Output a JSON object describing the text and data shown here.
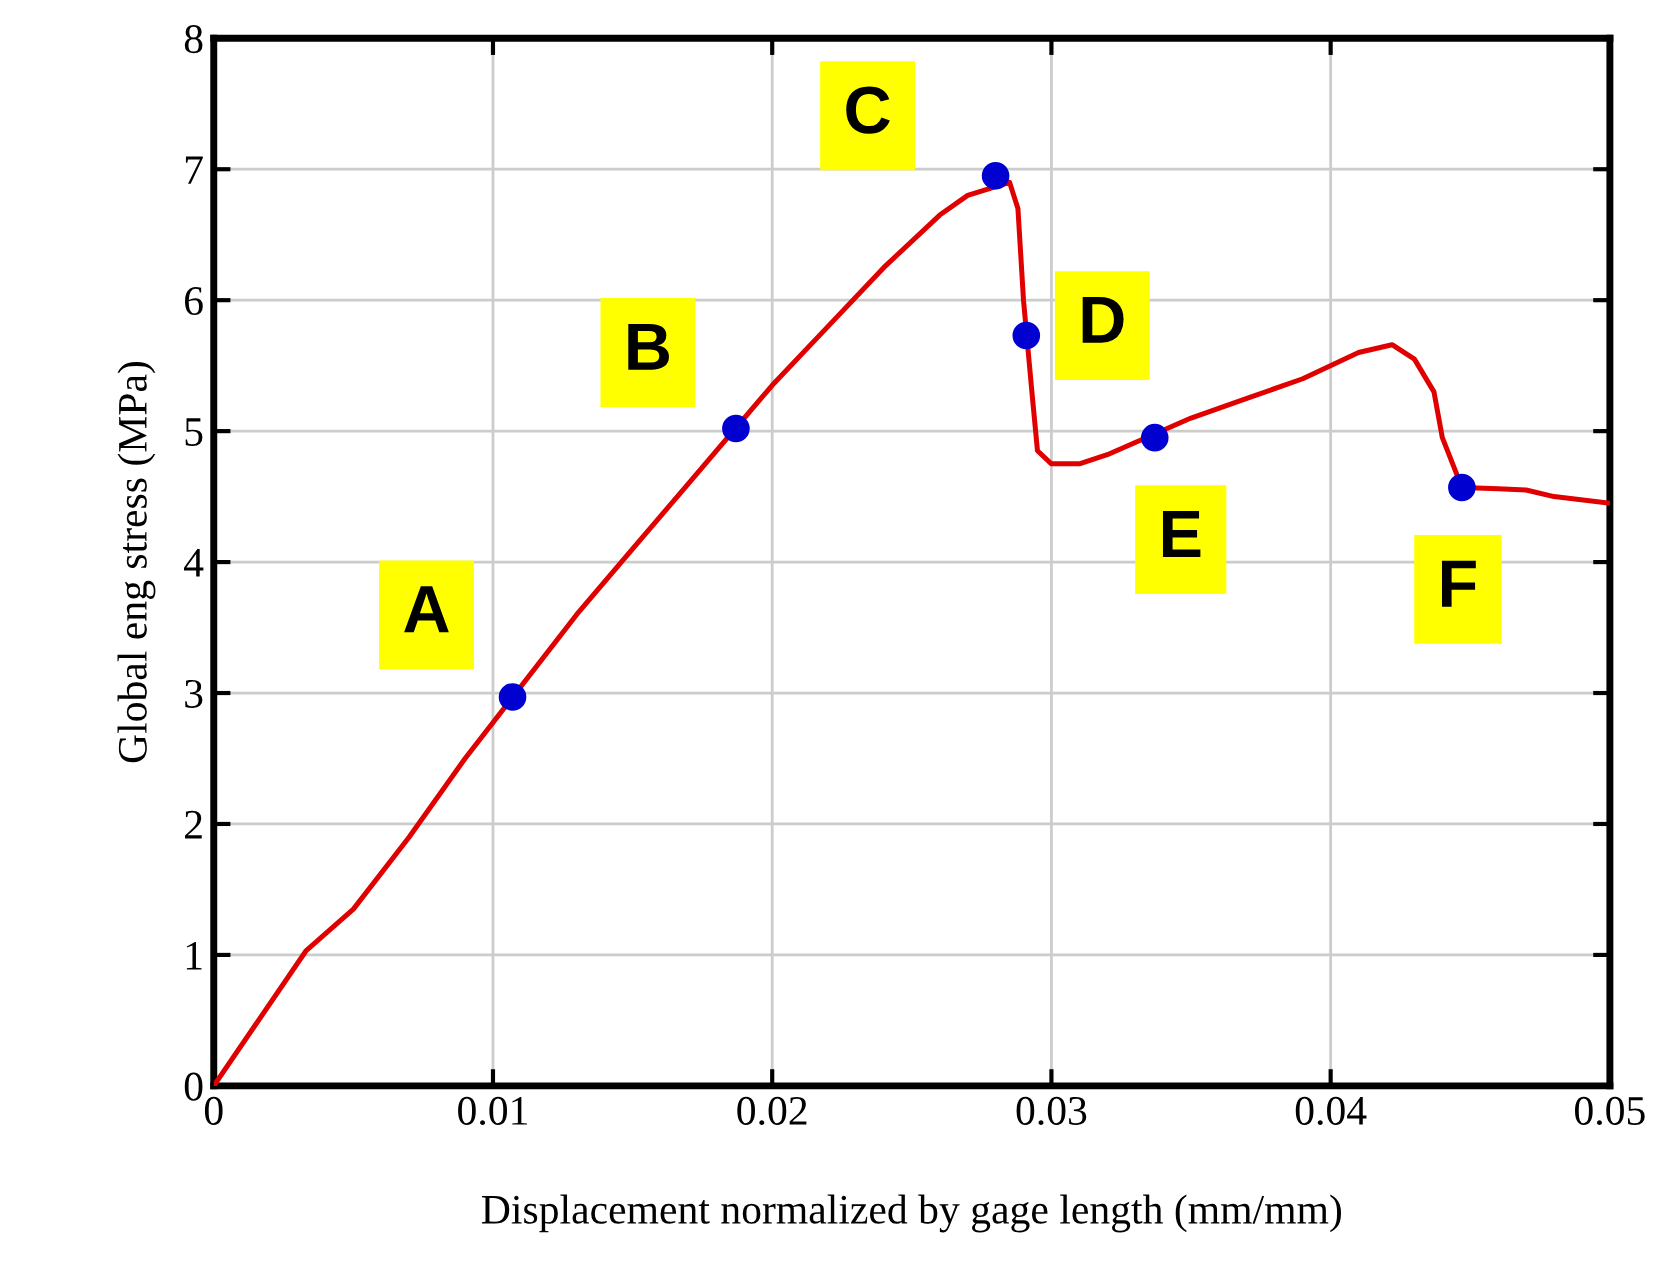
{
  "chart_data": {
    "type": "line",
    "xlabel": "Displacement normalized by gage length (mm/mm)",
    "ylabel": "Global eng stress (MPa)",
    "xlim": [
      0,
      0.05
    ],
    "xticks": [
      0,
      0.01,
      0.02,
      0.03,
      0.04,
      0.05
    ],
    "ylim": [
      0,
      8
    ],
    "yticks": [
      0,
      1,
      2,
      3,
      4,
      5,
      6,
      7,
      8
    ],
    "grid": true,
    "series": [
      {
        "color": "#e00000",
        "marker": "none",
        "x": [
          0,
          0.0033,
          0.005,
          0.007,
          0.009,
          0.013,
          0.015,
          0.017,
          0.02,
          0.022,
          0.024,
          0.026,
          0.027,
          0.0285,
          0.0288,
          0.029,
          0.0293,
          0.0295,
          0.03,
          0.031,
          0.032,
          0.035,
          0.037,
          0.039,
          0.041,
          0.0422,
          0.043,
          0.0437,
          0.044,
          0.0447,
          0.046,
          0.047,
          0.048,
          0.05
        ],
        "values": [
          0,
          1.03,
          1.35,
          1.9,
          2.5,
          3.6,
          4.1,
          4.6,
          5.35,
          5.8,
          6.25,
          6.65,
          6.8,
          6.9,
          6.7,
          6.0,
          5.3,
          4.85,
          4.75,
          4.75,
          4.82,
          5.1,
          5.25,
          5.4,
          5.6,
          5.66,
          5.55,
          5.3,
          4.95,
          4.57,
          4.56,
          4.55,
          4.5,
          4.45
        ]
      },
      {
        "type": "scatter",
        "color": "#0000d0",
        "marker": "circle",
        "x": [
          0.0107,
          0.0187,
          0.028,
          0.0291,
          0.0337,
          0.0447
        ],
        "values": [
          2.97,
          5.02,
          6.95,
          5.73,
          4.95,
          4.57
        ]
      }
    ],
    "annotations": [
      {
        "text": "A",
        "x": 0.0107,
        "y": 2.97
      },
      {
        "text": "B",
        "x": 0.0187,
        "y": 5.02
      },
      {
        "text": "C",
        "x": 0.028,
        "y": 6.95
      },
      {
        "text": "D",
        "x": 0.0291,
        "y": 5.73
      },
      {
        "text": "E",
        "x": 0.0337,
        "y": 4.95
      },
      {
        "text": "F",
        "x": 0.0447,
        "y": 4.57
      }
    ]
  }
}
